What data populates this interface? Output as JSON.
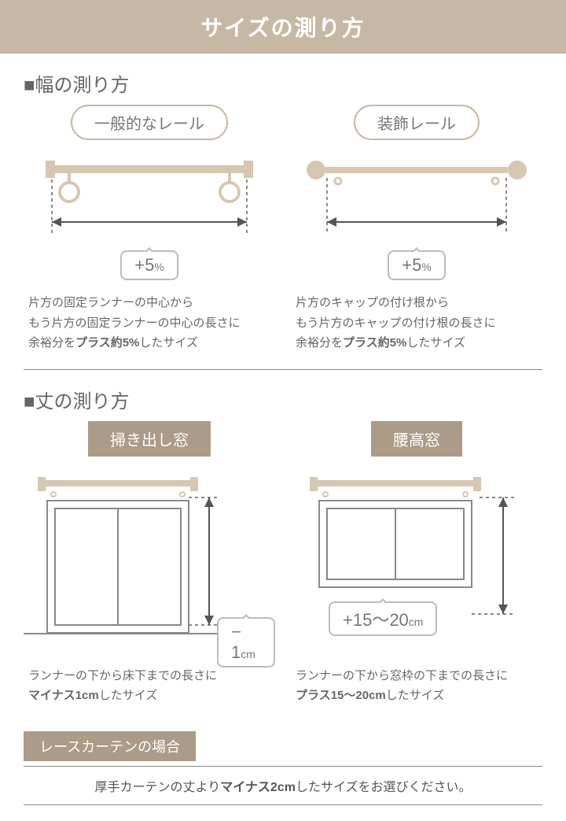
{
  "title": "サイズの測り方",
  "width_section": {
    "heading": "■幅の測り方",
    "left": {
      "label": "一般的なレール",
      "callout": "+5",
      "callout_unit": "%",
      "desc_lines": [
        "片方の固定ランナーの中心から",
        "もう片方の固定ランナーの中心の長さに",
        "余裕分を<b>プラス約5%</b>したサイズ"
      ]
    },
    "right": {
      "label": "装飾レール",
      "callout": "+5",
      "callout_unit": "%",
      "desc_lines": [
        "片方のキャップの付け根から",
        "もう片方のキャップの付け根の長さに",
        "余裕分を<b>プラス約5%</b>したサイズ"
      ]
    }
  },
  "height_section": {
    "heading": "■丈の測り方",
    "left": {
      "label": "掃き出し窓",
      "callout": "− 1",
      "callout_unit": "cm",
      "desc_lines": [
        "ランナーの下から床下までの長さに",
        "<b>マイナス1cm</b>したサイズ"
      ]
    },
    "right": {
      "label": "腰高窓",
      "callout": "+15〜20",
      "callout_unit": "cm",
      "desc_lines": [
        "ランナーの下から窓枠の下までの長さに",
        "<b>プラス15〜20cm</b>したサイズ"
      ]
    }
  },
  "lace": {
    "label": "レースカーテンの場合",
    "note": "厚手カーテンの丈より<b>マイナス2cm</b>したサイズをお選びください。"
  },
  "colors": {
    "beige": "#c6b8a4",
    "dark_beige": "#ab9b88",
    "rail": "#d7c7b0",
    "gray": "#888888"
  }
}
